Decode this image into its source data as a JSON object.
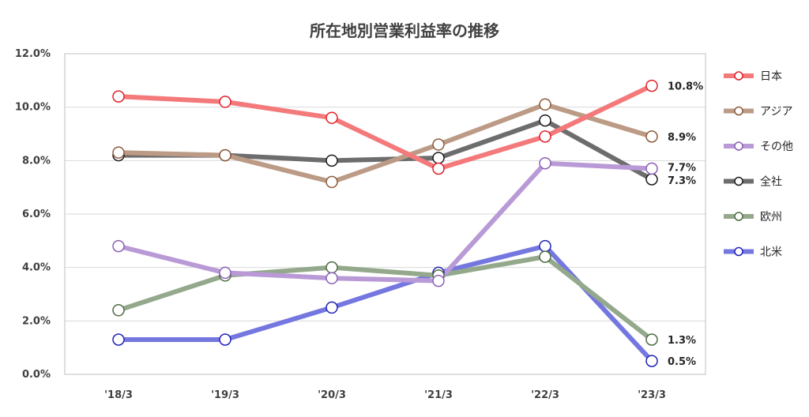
{
  "chart_data": {
    "type": "line",
    "title": "所在地別営業利益率の推移",
    "xlabel": "",
    "ylabel": "",
    "categories": [
      "'18/3",
      "'19/3",
      "'20/3",
      "'21/3",
      "'22/3",
      "'23/3"
    ],
    "ylim": [
      0,
      12
    ],
    "yticks": [
      "0.0%",
      "2.0%",
      "4.0%",
      "6.0%",
      "8.0%",
      "10.0%",
      "12.0%"
    ],
    "grid": true,
    "legend_position": "right",
    "series": [
      {
        "name": "日本",
        "color": "#f4797b",
        "marker_edge": "#e0202a",
        "values": [
          10.4,
          10.2,
          9.6,
          7.7,
          8.9,
          10.8
        ],
        "end_label": "10.8%"
      },
      {
        "name": "アジア",
        "color": "#bc9b86",
        "marker_edge": "#8c5a3a",
        "values": [
          8.3,
          8.2,
          7.2,
          8.6,
          10.1,
          8.9
        ],
        "end_label": "8.9%"
      },
      {
        "name": "その他",
        "color": "#b99ad6",
        "marker_edge": "#8a5fb8",
        "values": [
          4.8,
          3.8,
          3.6,
          3.5,
          7.9,
          7.7
        ],
        "end_label": "7.7%"
      },
      {
        "name": "全社",
        "color": "#6d6d6d",
        "marker_edge": "#1a1a1a",
        "values": [
          8.2,
          8.2,
          8.0,
          8.1,
          9.5,
          7.3
        ],
        "end_label": "7.3%"
      },
      {
        "name": "欧州",
        "color": "#94a98c",
        "marker_edge": "#4d6b42",
        "values": [
          2.4,
          3.7,
          4.0,
          3.7,
          4.4,
          1.3
        ],
        "end_label": "1.3%"
      },
      {
        "name": "北米",
        "color": "#7577e0",
        "marker_edge": "#1f22b8",
        "values": [
          1.3,
          1.3,
          2.5,
          3.8,
          4.8,
          0.5
        ],
        "end_label": "0.5%"
      }
    ]
  }
}
